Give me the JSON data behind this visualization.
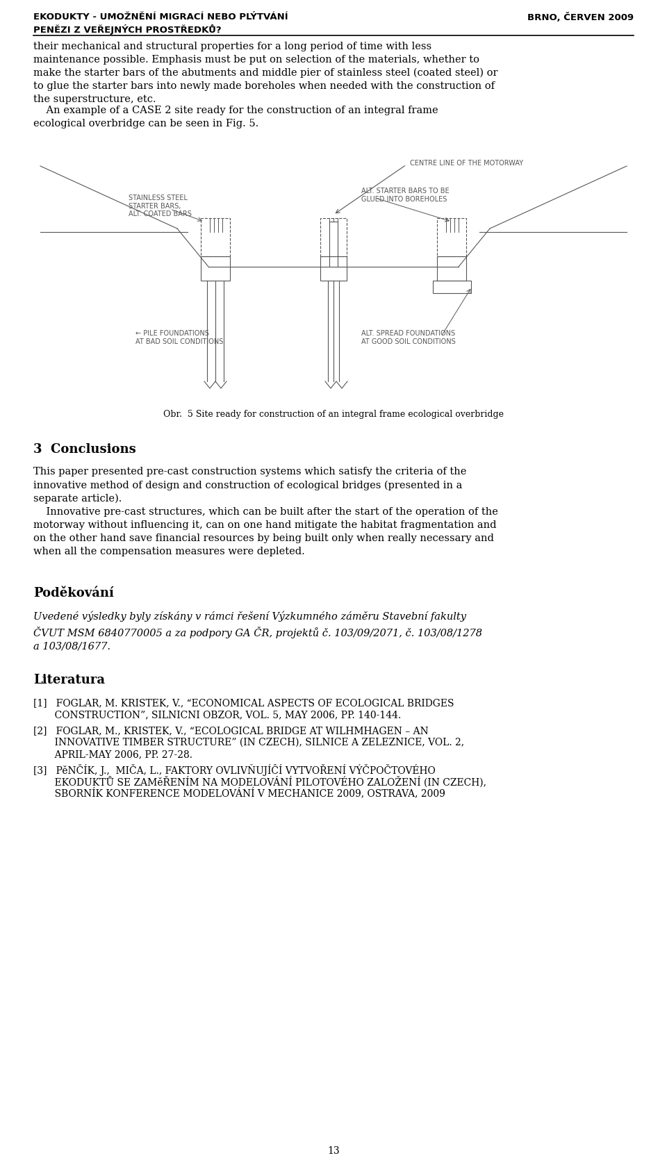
{
  "header_left": "EKODUKTY - UMOŽNĚNÍ MIGRACÍ NEBO PLÝTVÁNÍ\nPENĚZI Z VEŘEJNÝCH PROSTŘEDKŮ?",
  "header_right": "BRNO, ČERVEN 2009",
  "body_text_1": "their mechanical and structural properties for a long period of time with less maintenance possible. Emphasis must be put on selection of the materials, whether to make the starter bars of the abutments and middle pier of stainless steel (coated steel) or to glue the starter bars into newly made boreholes when needed with the construction of the superstructure, etc.",
  "body_text_2": "An example of a CASE 2 site ready for the construction of an integral frame ecological overbridge can be seen in Fig. 5.",
  "fig_caption": "Obr.  5 Site ready for construction of an integral frame ecological overbridge",
  "label_centre": "CENTRE LINE OF THE MOTORWAY",
  "label_stainless": "STAINLESS STEEL\nSTARTER BARS,\nALT. COATED BARS",
  "label_alt_starter": "ALT. STARTER BARS TO BE\nGLUED INTO BOREHOLES",
  "label_pile": "PILE FOUNDATIONS\nAT BAD SOIL CONDITIONS",
  "label_spread": "ALT. SPREAD FOUNDATIONS\nAT GOOD SOIL CONDITIONS",
  "section3_title": "3  Conclusions",
  "section3_text1": "This paper presented pre-cast construction systems which satisfy the criteria of the innovative method of design and construction of ecological bridges (presented in a separate article).",
  "section3_text2": "Innovative pre-cast structures, which can be built after the start of the operation of the motorway without influencing it, can on one hand mitigate the habitat fragmentation and on the other hand save financial resources by being built only when really necessary and when all the compensation measures were depleted.",
  "section4_title": "Poděkování",
  "section4_italic": "Uvedené výsledky byly získány v rámci řešení Výzkumného záměru Stavební fakulty ČVUT MSM 6840770005 a za podpory GA ČR, projektů č. 103/09/2071, č. 103/08/1278 a 103/08/1677.",
  "section5_title": "Literatura",
  "ref1": "[1]   FOGLAR, M. KRISTEK, V., \"ECONOMICAL ASPECTS OF ECOLOGICAL BRIDGES CONSTRUCTION\", SILNICNI OBZOR, VOL. 5, MAY 2006, PP. 140-144.",
  "ref2": "[2]   FOGLAR, M., KRISTEK, V., \"ECOLOGICAL BRIDGE AT WILHMHAGEN – AN INNOVATIVE TIMBER STRUCTURE\" (IN CZECH), SILNICE A ZELEZNICE, VOL. 2, APRIL-MAY 2006, PP. 27-28.",
  "ref3": "[3]   PĚNČÍK, J.,  MIČA, L., FAKTORY OVLIVŇUJÍCÍ VYTVOŘENÍ VÝPOČTOVÉHO EKODUKTŮ SE ZAMĚŘENÍM NA MODELOVÁNÍ PILOTOVÉHO ZALOŽENÍ (IN CZECH), SBORNÍK KONFERENCE MODELOVÁNÍ V MECHANICE 2009, OSTRAVA, 2009",
  "page_number": "13",
  "bg_color": "#ffffff",
  "text_color": "#000000",
  "diagram_color": "#555555"
}
